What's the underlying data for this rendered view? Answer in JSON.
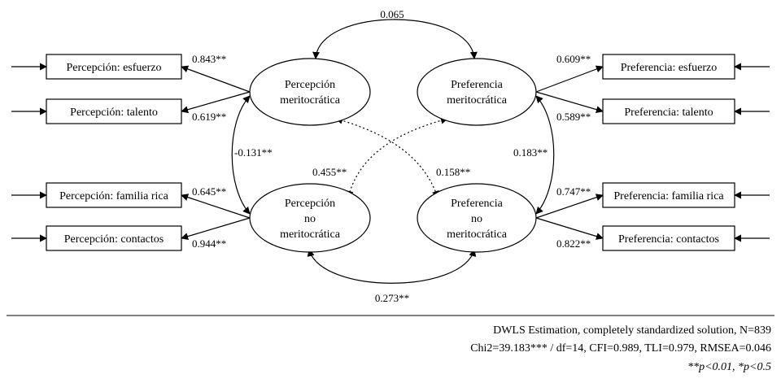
{
  "latent": {
    "perc_merit": [
      "Percepción",
      "meritocrática"
    ],
    "pref_merit": [
      "Preferencia",
      "meritocrática"
    ],
    "perc_nomerit": [
      "Percepción",
      "no",
      "meritocrática"
    ],
    "pref_nomerit": [
      "Preferencia",
      "no",
      "meritocrática"
    ]
  },
  "indicators": {
    "perc_esfuerzo": "Percepción: esfuerzo",
    "perc_talento": "Percepción: talento",
    "perc_familia": "Percepción: familia rica",
    "perc_contactos": "Percepción: contactos",
    "pref_esfuerzo": "Preferencia: esfuerzo",
    "pref_talento": "Preferencia: talento",
    "pref_familia": "Preferencia: familia rica",
    "pref_contactos": "Preferencia: contactos"
  },
  "loadings": {
    "perc_esfuerzo": "0.843**",
    "perc_talento": "0.619**",
    "perc_familia": "0.645**",
    "perc_contactos": "0.944**",
    "pref_esfuerzo": "0.609**",
    "pref_talento": "0.589**",
    "pref_familia": "0.747**",
    "pref_contactos": "0.822**"
  },
  "covariances": {
    "top": "0.065",
    "bottom": "0.273**",
    "left": "-0.131**",
    "right": "0.183**",
    "diag_a": "0.455**",
    "diag_b": "0.158**"
  },
  "notes": {
    "line1": "DWLS Estimation, completely standardized solution, N=839",
    "line2": "Chi2=39.183*** / df=14, CFI=0.989, TLI=0.979, RMSEA=0.046",
    "line3": "**p<0.01, *p<0.5"
  }
}
